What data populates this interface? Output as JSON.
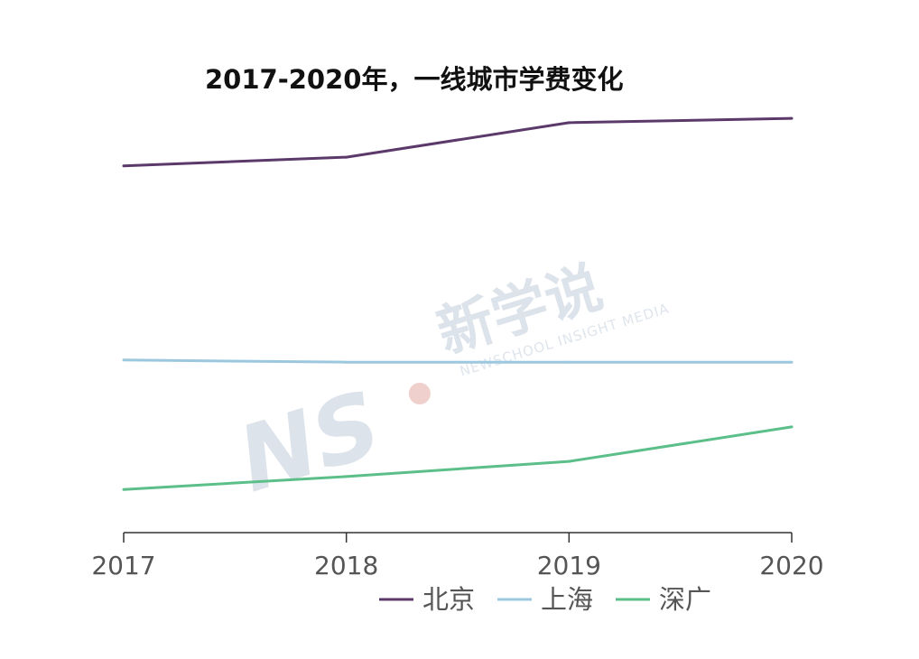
{
  "chart_data": {
    "type": "line",
    "title": "2017-2020年，一线城市学费变化",
    "x": [
      "2017",
      "2018",
      "2019",
      "2020"
    ],
    "series": [
      {
        "name": "北京",
        "color": "#5b3a6b",
        "values": [
          0.85,
          0.87,
          0.95,
          0.96
        ]
      },
      {
        "name": "上海",
        "color": "#9cc8df",
        "values": [
          0.4,
          0.395,
          0.395,
          0.395
        ]
      },
      {
        "name": "深广",
        "color": "#5cbf8a",
        "values": [
          0.1,
          0.13,
          0.165,
          0.245
        ]
      }
    ],
    "ylim": [
      0,
      1
    ],
    "grid": false,
    "y_axis_shown": false,
    "legend_position": "bottom"
  },
  "watermark": {
    "logo_text": "NS",
    "brand_cn": "新学说",
    "brand_en": "NEWSCHOOL INSIGHT MEDIA"
  }
}
